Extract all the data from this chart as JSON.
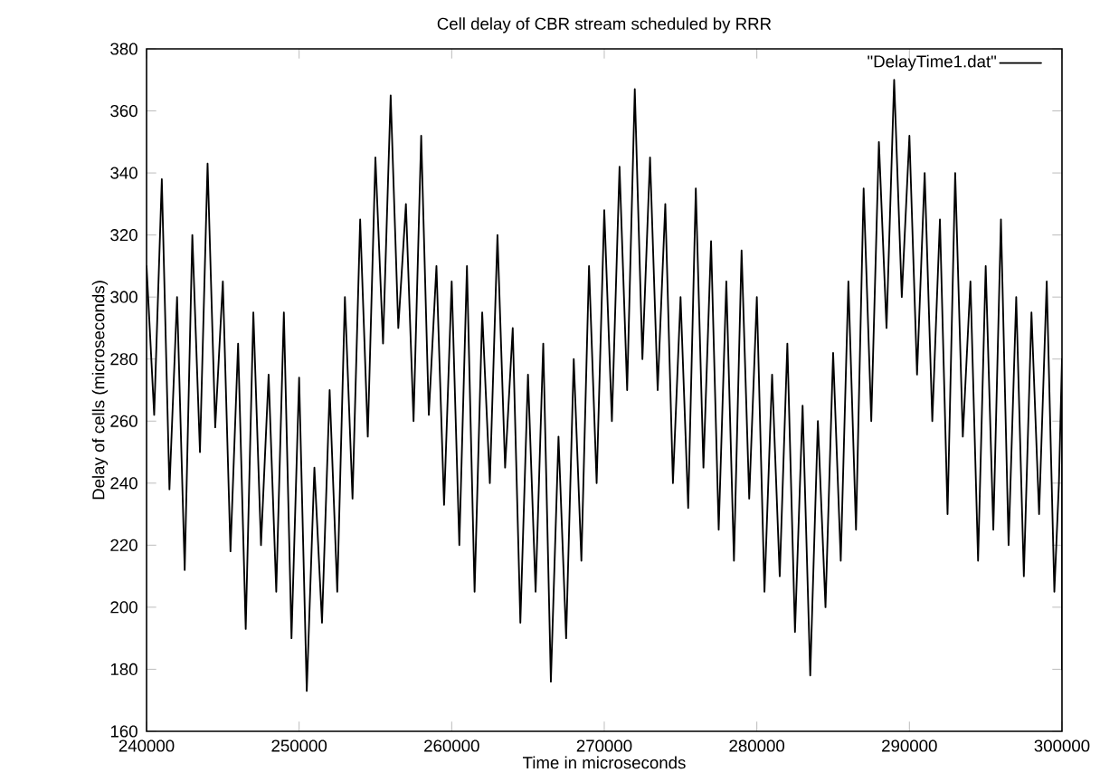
{
  "chart_data": {
    "type": "line",
    "title": "Cell delay of CBR stream scheduled by RRR",
    "xlabel": "Time in microseconds",
    "ylabel": "Delay of cells (microseconds)",
    "x": [
      240000,
      240500,
      241000,
      241500,
      242000,
      242500,
      243000,
      243500,
      244000,
      244500,
      245000,
      245500,
      246000,
      246500,
      247000,
      247500,
      248000,
      248500,
      249000,
      249500,
      250000,
      250500,
      251000,
      251500,
      252000,
      252500,
      253000,
      253500,
      254000,
      254500,
      255000,
      255500,
      256000,
      256500,
      257000,
      257500,
      258000,
      258500,
      259000,
      259500,
      260000,
      260500,
      261000,
      261500,
      262000,
      262500,
      263000,
      263500,
      264000,
      264500,
      265000,
      265500,
      266000,
      266500,
      267000,
      267500,
      268000,
      268500,
      269000,
      269500,
      270000,
      270500,
      271000,
      271500,
      272000,
      272500,
      273000,
      273500,
      274000,
      274500,
      275000,
      275500,
      276000,
      276500,
      277000,
      277500,
      278000,
      278500,
      279000,
      279500,
      280000,
      280500,
      281000,
      281500,
      282000,
      282500,
      283000,
      283500,
      284000,
      284500,
      285000,
      285500,
      286000,
      286500,
      287000,
      287500,
      288000,
      288500,
      289000,
      289500,
      290000,
      290500,
      291000,
      291500,
      292000,
      292500,
      293000,
      293500,
      294000,
      294500,
      295000,
      295500,
      296000,
      296500,
      297000,
      297500,
      298000,
      298500,
      299000,
      299500,
      299800,
      300000,
      300000
    ],
    "series": [
      {
        "name": "\"DelayTime1.dat\"",
        "color": "#000000",
        "values": [
          310,
          262,
          338,
          238,
          300,
          212,
          320,
          250,
          343,
          258,
          305,
          218,
          285,
          193,
          295,
          220,
          275,
          205,
          295,
          190,
          274,
          173,
          245,
          195,
          270,
          205,
          300,
          235,
          325,
          255,
          345,
          285,
          365,
          290,
          330,
          260,
          352,
          262,
          310,
          233,
          305,
          220,
          310,
          205,
          295,
          240,
          320,
          245,
          290,
          195,
          275,
          205,
          285,
          176,
          255,
          190,
          280,
          215,
          310,
          240,
          328,
          260,
          342,
          270,
          367,
          280,
          345,
          270,
          330,
          240,
          300,
          232,
          335,
          245,
          318,
          225,
          305,
          215,
          315,
          235,
          300,
          205,
          275,
          210,
          285,
          192,
          265,
          178,
          260,
          200,
          282,
          215,
          305,
          225,
          335,
          260,
          350,
          290,
          370,
          300,
          352,
          275,
          340,
          260,
          325,
          230,
          340,
          255,
          305,
          215,
          310,
          225,
          325,
          220,
          300,
          210,
          295,
          230,
          305,
          205,
          240,
          280,
          180
        ]
      }
    ],
    "xlim": [
      240000,
      300000
    ],
    "ylim": [
      160,
      380
    ],
    "xticks": [
      240000,
      250000,
      260000,
      270000,
      280000,
      290000,
      300000
    ],
    "yticks": [
      160,
      180,
      200,
      220,
      240,
      260,
      280,
      300,
      320,
      340,
      360,
      380
    ],
    "legend": "top right",
    "line_style": "solid"
  }
}
